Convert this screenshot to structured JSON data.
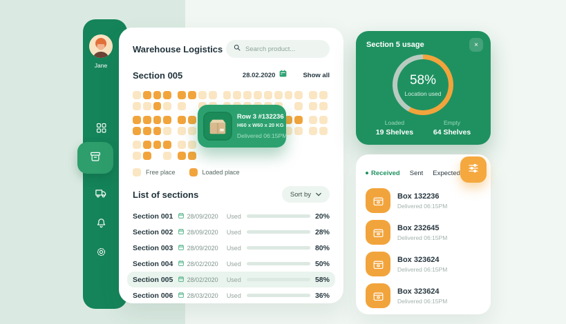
{
  "colors": {
    "sidebar_green": "#15845A",
    "card_green": "#1F9160",
    "tooltip_green": "#2CA16F",
    "accent_orange": "#F2A43C",
    "free_place": "#FBE6C3",
    "loaded_place": "#F2A43C",
    "active_cell": "#147A4F",
    "ring_track": "#B9CBC1",
    "bar_track": "#DCE9E2"
  },
  "sidebar": {
    "user_name": "Jane",
    "items": [
      {
        "icon": "grid-icon",
        "active": false
      },
      {
        "icon": "archive-box-icon",
        "active": true
      },
      {
        "icon": "truck-icon",
        "active": false
      },
      {
        "icon": "bell-icon",
        "active": false
      },
      {
        "icon": "gear-icon",
        "active": false
      }
    ]
  },
  "header": {
    "title": "Warehouse Logistics",
    "search_placeholder": "Search product..."
  },
  "section_view": {
    "title": "Section 005",
    "date": "28.02.2020",
    "show_all": "Show all",
    "grid": {
      "legend_note": "F=free place, L=loaded place, A=active hovered cell, .=no shelf; column groups after 4, 8, 16",
      "rows": [
        "FLLLLLFFFFFFFFFFFF",
        "FFLFF.FFFFFFFF.FFF",
        "LLLLLLAFFLLLLLLLFF",
        "LLLFFFLLLLFFFFFFFF",
        "FLLLFF............",
        "FL.FLL............"
      ]
    },
    "legend": [
      {
        "label": "Free place",
        "color": "#FBE6C3"
      },
      {
        "label": "Loaded place",
        "color": "#F2A43C"
      }
    ]
  },
  "tooltip": {
    "title": "Row 3 #132236",
    "dimensions": "H60 x W60 x 20 KG",
    "delivered": "Delivered 06:15PM"
  },
  "sections_list": {
    "title": "List of sections",
    "sort_label": "Sort by",
    "used_label": "Used",
    "rows": [
      {
        "name": "Section 001",
        "date": "28/09/2020",
        "percent": 20,
        "percent_label": "20%",
        "bar_color": "#5B8DEF",
        "highlighted": false
      },
      {
        "name": "Section 002",
        "date": "28/09/2020",
        "percent": 28,
        "percent_label": "28%",
        "bar_color": "#5B8DEF",
        "highlighted": false
      },
      {
        "name": "Section 003",
        "date": "28/09/2020",
        "percent": 80,
        "percent_label": "80%",
        "bar_color": "#F07B3C",
        "highlighted": false
      },
      {
        "name": "Section 004",
        "date": "28/02/2020",
        "percent": 50,
        "percent_label": "50%",
        "bar_color": "#F5C544",
        "highlighted": false
      },
      {
        "name": "Section 005",
        "date": "28/02/2020",
        "percent": 58,
        "percent_label": "58%",
        "bar_color": "#F2A43C",
        "highlighted": true
      },
      {
        "name": "Section 006",
        "date": "28/03/2020",
        "percent": 36,
        "percent_label": "36%",
        "bar_color": "#4F9D53",
        "highlighted": false
      }
    ]
  },
  "usage_card": {
    "title": "Section 5 usage",
    "close": "×",
    "percent": 58,
    "percent_label": "58%",
    "caption": "Location used",
    "stats": [
      {
        "label": "Loaded",
        "value": "19 Shelves"
      },
      {
        "label": "Empty",
        "value": "64 Shelves"
      }
    ]
  },
  "shipments": {
    "tabs": [
      {
        "label": "Received",
        "active": true
      },
      {
        "label": "Sent",
        "active": false
      },
      {
        "label": "Expected",
        "active": false
      }
    ],
    "items": [
      {
        "name": "Box 132236",
        "status": "Delivered 06:15PM"
      },
      {
        "name": "Box 232645",
        "status": "Delivered 06:15PM"
      },
      {
        "name": "Box 323624",
        "status": "Delivered 06:15PM"
      },
      {
        "name": "Box 323624",
        "status": "Delivered 06:15PM"
      }
    ]
  }
}
